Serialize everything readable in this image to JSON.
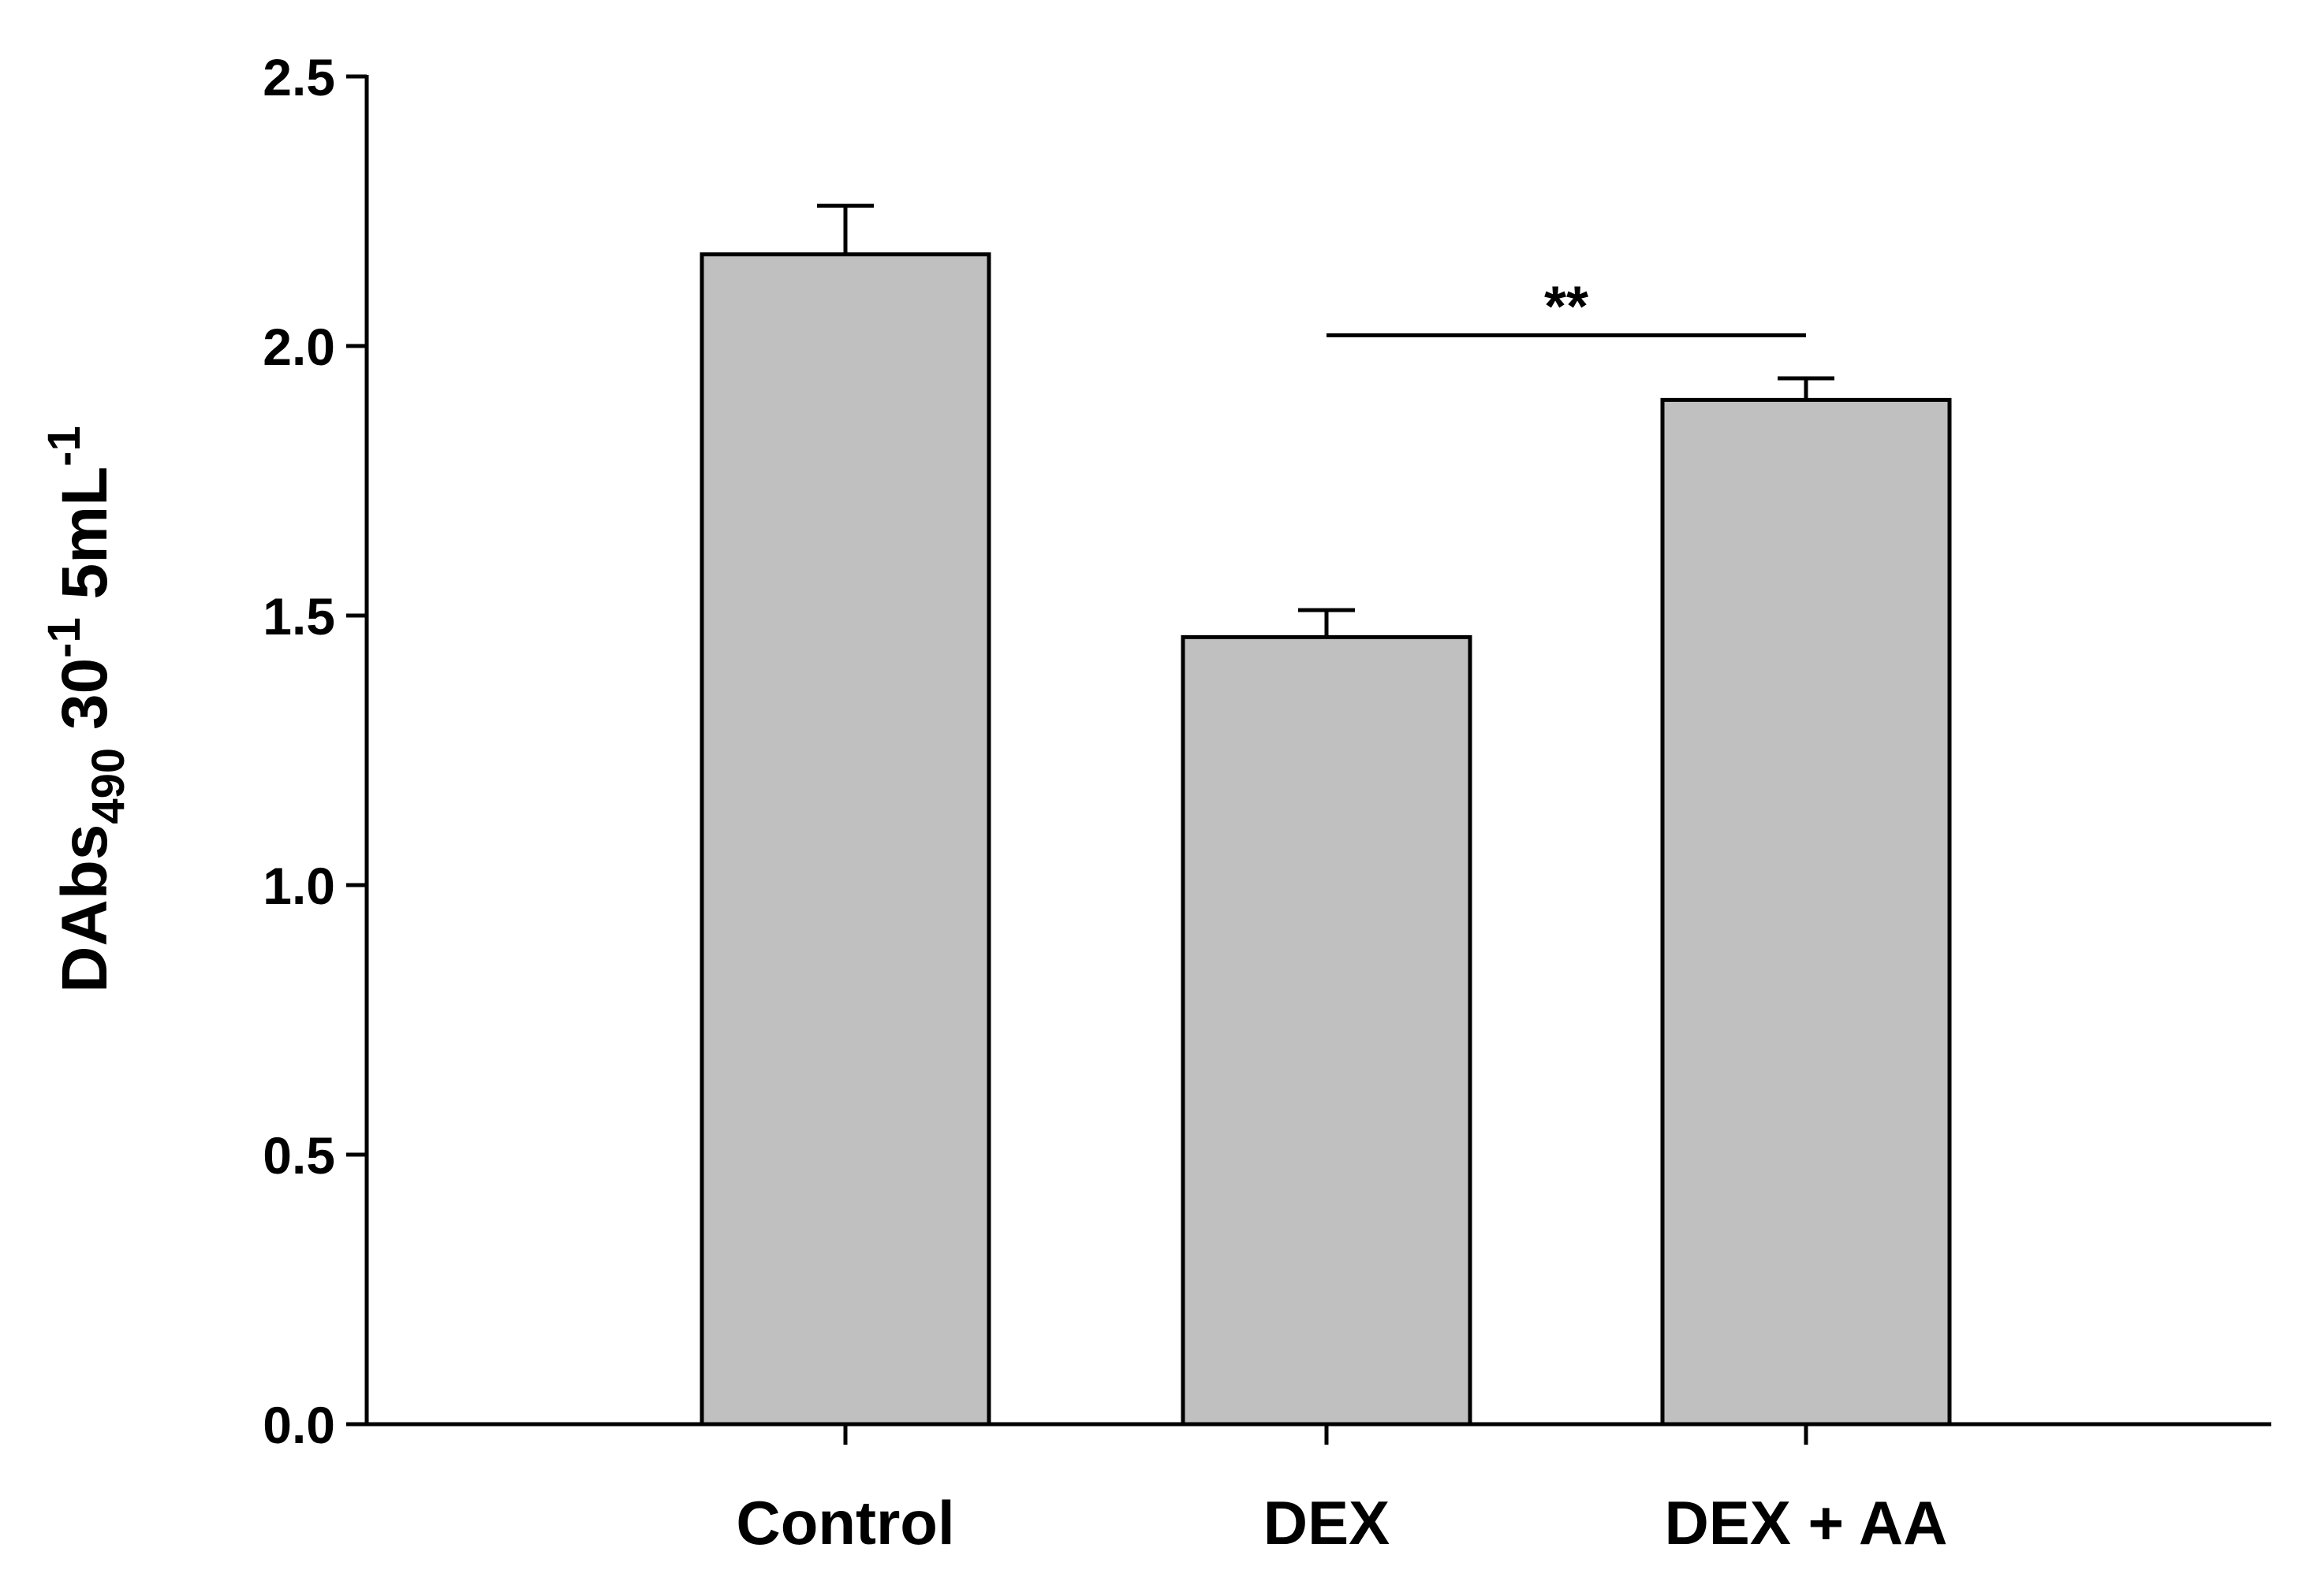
{
  "chart_data": {
    "type": "bar",
    "title": "",
    "xlabel": "",
    "ylabel": {
      "main": "DAbs",
      "sub": "490",
      "part2": " 30",
      "sup2": "-1",
      "part3": " 5mL",
      "sup3": "-1"
    },
    "categories": [
      "Control",
      "DEX",
      "DEX + AA"
    ],
    "values": [
      2.17,
      1.46,
      1.9
    ],
    "errors": [
      0.09,
      0.05,
      0.04
    ],
    "ylim": [
      0,
      2.5
    ],
    "yticks": [
      0.0,
      0.5,
      1.0,
      1.5,
      2.0,
      2.5
    ],
    "ytick_labels": [
      "0.0",
      "0.5",
      "1.0",
      "1.5",
      "2.0",
      "2.5"
    ],
    "bar_color": "#c0c0c0",
    "edge_color": "#000000",
    "significance": {
      "from_category": "DEX",
      "to_category": "DEX + AA",
      "y": 2.02,
      "label": "**"
    },
    "grid": false,
    "legend": "none"
  }
}
